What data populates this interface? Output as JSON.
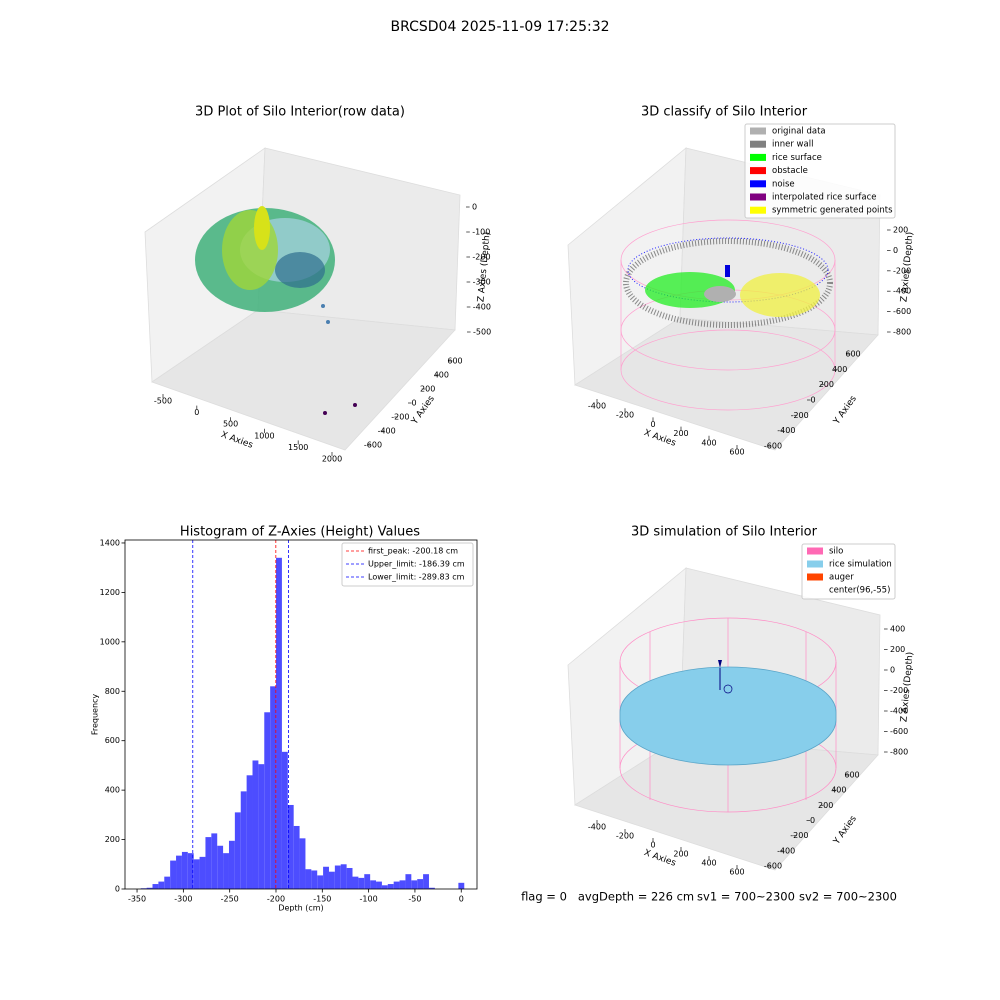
{
  "title": "BRCSD04 2025-11-09 17:25:32",
  "chart_data": [
    {
      "type": "scatter3d",
      "title": "3D Plot of Silo Interior(row data)",
      "x_label": "X Axies",
      "y_label": "Y Axies",
      "z_label": "Z Axies (Depth)",
      "xticks": [
        -500,
        0,
        500,
        1000,
        1500,
        2000
      ],
      "yticks": [
        600,
        400,
        200,
        0,
        -200,
        -400,
        -600
      ],
      "zticks": [
        0,
        -100,
        -200,
        -300,
        -400,
        -500
      ]
    },
    {
      "type": "scatter3d",
      "title": "3D classify of Silo Interior",
      "x_label": "X Axies",
      "y_label": "Y Axies",
      "z_label": "Z Axies (Depth)",
      "xticks": [
        -400,
        -200,
        0,
        200,
        400,
        600
      ],
      "yticks": [
        600,
        400,
        200,
        0,
        -200,
        -400,
        -600
      ],
      "zticks": [
        200,
        0,
        -200,
        -400,
        -600,
        -800
      ],
      "legend": [
        {
          "label": "original data",
          "color": "#b0b0b0"
        },
        {
          "label": "inner wall",
          "color": "#808080"
        },
        {
          "label": "rice surface",
          "color": "#00ff00"
        },
        {
          "label": "obstacle",
          "color": "#ff0000"
        },
        {
          "label": "noise",
          "color": "#0000ff"
        },
        {
          "label": "interpolated rice surface",
          "color": "#800080"
        },
        {
          "label": "symmetric generated points",
          "color": "#ffff00"
        }
      ]
    },
    {
      "type": "histogram",
      "title": "Histogram of Z-Axies (Height) Values",
      "x_label": "Depth (cm)",
      "y_label": "Frequency",
      "color": "#4d4dff",
      "bins": [
        -346,
        -339.65,
        -333.3,
        -326.95,
        -320.6,
        -314.25,
        -307.9,
        -301.55,
        -295.2,
        -288.85,
        -282.5,
        -276.15,
        -269.8,
        -263.45,
        -257.1,
        -250.75,
        -244.4,
        -238.05,
        -231.7,
        -225.35,
        -219,
        -212.65,
        -206.3,
        -199.95,
        -193.6,
        -187.25,
        -180.9,
        -174.55,
        -168.2,
        -161.85,
        -155.5,
        -149.15,
        -142.8,
        -136.45,
        -130.1,
        -123.75,
        -117.4,
        -111.05,
        -104.7,
        -98.35,
        -92,
        -85.65,
        -79.3,
        -72.95,
        -66.6,
        -60.25,
        -53.9,
        -47.55,
        -41.2,
        -34.85,
        -28.5,
        -22.15,
        -15.8,
        -9.45,
        -3.1,
        3.25
      ],
      "values": [
        3,
        5,
        20,
        30,
        50,
        115,
        135,
        150,
        145,
        120,
        130,
        210,
        225,
        175,
        145,
        195,
        310,
        395,
        460,
        520,
        505,
        715,
        820,
        1340,
        555,
        340,
        255,
        205,
        80,
        75,
        55,
        90,
        70,
        95,
        100,
        85,
        50,
        45,
        60,
        35,
        30,
        15,
        20,
        30,
        35,
        60,
        35,
        40,
        60,
        5,
        0,
        0,
        0,
        0,
        25
      ],
      "xlim": [
        -363,
        17
      ],
      "ylim": [
        0,
        1412
      ],
      "xticks": [
        -350,
        -300,
        -250,
        -200,
        -150,
        -100,
        -50,
        0
      ],
      "yticks": [
        0,
        200,
        400,
        600,
        800,
        1000,
        1200,
        1400
      ],
      "lines": [
        {
          "label": "first_peak: -200.18 cm",
          "value": -200.18,
          "color": "#ff0000"
        },
        {
          "label": "Upper_limit: -186.39 cm",
          "value": -186.39,
          "color": "#0000ff"
        },
        {
          "label": "Lower_limit: -289.83 cm",
          "value": -289.83,
          "color": "#0000ff"
        }
      ]
    },
    {
      "type": "surface3d",
      "title": "3D simulation of Silo Interior",
      "x_label": "X Axies",
      "y_label": "Y Axies",
      "z_label": "Z Axies (Depth)",
      "xticks": [
        -400,
        -200,
        0,
        200,
        400,
        600
      ],
      "yticks": [
        600,
        400,
        200,
        0,
        -200,
        -400,
        -600
      ],
      "zticks": [
        400,
        200,
        0,
        -200,
        -400,
        -600,
        -800
      ],
      "legend": [
        {
          "label": "silo",
          "color": "#ff69b4"
        },
        {
          "label": "rice simulation",
          "color": "#87ceeb"
        },
        {
          "label": "auger",
          "color": "#ff4500"
        },
        {
          "label": "center(96,-55)",
          "color": "#ffffff"
        }
      ]
    }
  ],
  "status": [
    "flag = 0",
    "avgDepth = 226 cm",
    "sv1 = 700~2300",
    "sv2 = 700~2300"
  ]
}
